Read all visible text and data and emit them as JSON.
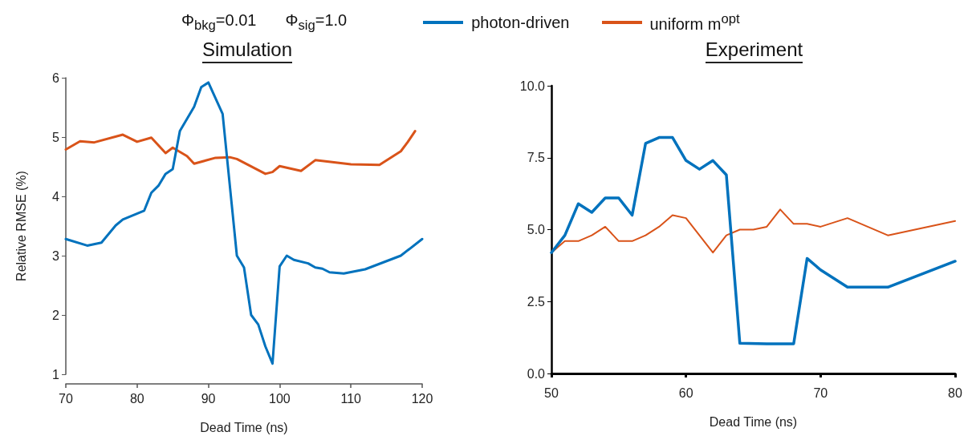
{
  "chart_data": [
    {
      "type": "line",
      "title": "Simulation",
      "xlabel": "Dead Time (ns)",
      "ylabel": "Relative RMSE (%)",
      "annotations": [
        "Φ$_{bkg}$=0.01",
        "Φ$_{sig}$=1.0"
      ],
      "legend": "top",
      "xlim": [
        70,
        120
      ],
      "xticks": [
        70,
        80,
        90,
        100,
        110,
        120
      ],
      "ylim": [
        1,
        6
      ],
      "yticks": [
        1,
        2,
        3,
        4,
        5,
        6
      ],
      "grid": false,
      "series": [
        {
          "name": "photon-driven",
          "color": "#0072bd",
          "x": [
            70,
            73,
            75,
            77,
            78,
            81,
            82,
            83,
            84,
            85,
            86,
            88,
            89,
            90,
            92,
            94,
            95,
            96,
            97,
            98,
            99,
            100,
            101,
            102,
            104,
            105,
            106,
            107,
            109,
            112,
            117,
            120
          ],
          "values": [
            3.28,
            3.17,
            3.22,
            3.51,
            3.61,
            3.76,
            4.06,
            4.18,
            4.38,
            4.46,
            5.1,
            5.51,
            5.84,
            5.92,
            5.39,
            3.0,
            2.8,
            2.0,
            1.84,
            1.47,
            1.18,
            2.82,
            3.0,
            2.93,
            2.87,
            2.8,
            2.78,
            2.72,
            2.7,
            2.77,
            3.0,
            3.28
          ]
        },
        {
          "name": "uniform m$^{opt}$",
          "color": "#d95319",
          "x": [
            70,
            72,
            74,
            78,
            80,
            82,
            84,
            85,
            87,
            88,
            91,
            93,
            94,
            98,
            99,
            100,
            103,
            105,
            110,
            114,
            117,
            118,
            119
          ],
          "values": [
            4.79,
            4.93,
            4.91,
            5.04,
            4.92,
            4.99,
            4.73,
            4.82,
            4.68,
            4.55,
            4.65,
            4.66,
            4.63,
            4.38,
            4.41,
            4.51,
            4.43,
            4.61,
            4.54,
            4.53,
            4.76,
            4.92,
            5.1
          ]
        }
      ]
    },
    {
      "type": "line",
      "title": "Experiment",
      "xlabel": "Dead Time (ns)",
      "xlim": [
        50,
        80
      ],
      "xticks": [
        50,
        60,
        70,
        80
      ],
      "ylim": [
        0,
        10
      ],
      "yticks": [
        {
          "value": 0,
          "label": "0.0"
        },
        {
          "value": 2.5,
          "label": "2.5"
        },
        {
          "value": 5,
          "label": "5.0"
        },
        {
          "value": 7.5,
          "label": "7.5"
        },
        {
          "value": 10,
          "label": "10.0"
        }
      ],
      "grid": false,
      "series": [
        {
          "color": "#0072bd",
          "x": [
            50,
            51,
            52,
            53,
            54,
            55,
            56,
            57,
            58,
            59,
            60,
            61,
            62,
            63,
            64,
            66,
            68,
            69,
            70,
            72,
            75,
            80
          ],
          "values": [
            4.2,
            4.8,
            5.9,
            5.6,
            6.1,
            6.1,
            5.5,
            8.0,
            8.2,
            8.2,
            7.4,
            7.1,
            7.4,
            6.9,
            1.05,
            1.03,
            1.03,
            4.0,
            3.6,
            3.0,
            3.0,
            3.9
          ]
        },
        {
          "color": "#d95319",
          "x": [
            50,
            51,
            52,
            53,
            54,
            55,
            56,
            57,
            58,
            59,
            60,
            62,
            63,
            64,
            65,
            66,
            67,
            68,
            69,
            70,
            72,
            75,
            80
          ],
          "values": [
            4.2,
            4.6,
            4.6,
            4.8,
            5.1,
            4.6,
            4.6,
            4.8,
            5.1,
            5.5,
            5.4,
            4.2,
            4.8,
            5.0,
            5.0,
            5.1,
            5.7,
            5.2,
            5.2,
            5.1,
            5.4,
            4.8,
            5.3
          ]
        }
      ]
    }
  ]
}
